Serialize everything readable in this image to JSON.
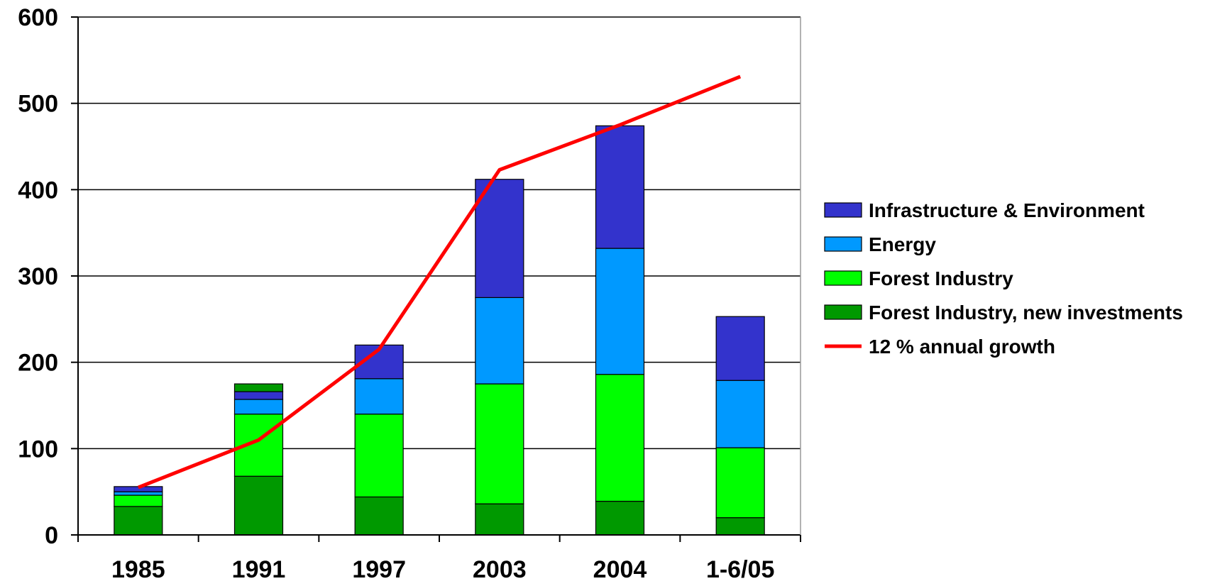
{
  "chart_data": {
    "type": "bar",
    "stacked": true,
    "categories": [
      "1985",
      "1991",
      "1997",
      "2003",
      "2004",
      "1-6/05"
    ],
    "ylim": [
      0,
      600
    ],
    "yticks": [
      0,
      100,
      200,
      300,
      400,
      500,
      600
    ],
    "grid": true,
    "legend_position": "right",
    "series": [
      {
        "name": "Forest Industry, new investments",
        "color": "#009900",
        "values": [
          33,
          68,
          44,
          36,
          39,
          20
        ]
      },
      {
        "name": "Forest Industry",
        "color": "#00ff00",
        "values": [
          13,
          72,
          96,
          139,
          147,
          81
        ]
      },
      {
        "name": "Energy",
        "color": "#0099ff",
        "values": [
          4,
          17,
          41,
          100,
          146,
          78
        ]
      },
      {
        "name": "Infrastructure & Environment",
        "color": "#3333cc",
        "values": [
          6,
          9,
          39,
          137,
          142,
          74
        ]
      },
      {
        "name": "",
        "color": "#009900",
        "values": [
          0,
          9,
          0,
          0,
          0,
          0
        ]
      }
    ],
    "line_series": {
      "name": "12 % annual growth",
      "color": "#ff0000",
      "values": [
        55,
        110,
        215,
        423,
        475,
        531
      ]
    },
    "legend_order": [
      {
        "name": "Infrastructure & Environment",
        "color": "#3333cc",
        "kind": "box"
      },
      {
        "name": "Energy",
        "color": "#0099ff",
        "kind": "box"
      },
      {
        "name": "Forest Industry",
        "color": "#00ff00",
        "kind": "box"
      },
      {
        "name": "Forest Industry, new investments",
        "color": "#009900",
        "kind": "box"
      },
      {
        "name": "12 % annual growth",
        "color": "#ff0000",
        "kind": "line"
      }
    ]
  }
}
